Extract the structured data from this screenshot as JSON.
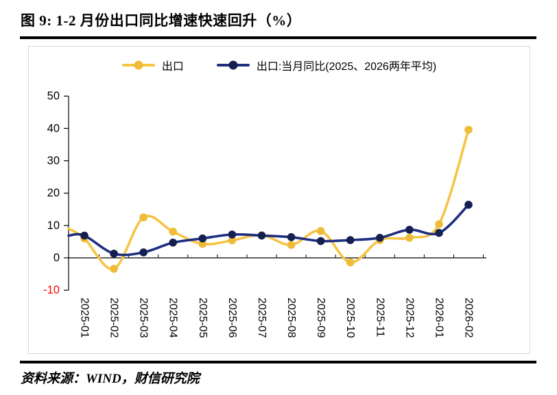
{
  "title": "图 9: 1-2 月份出口同比增速快速回升（%）",
  "source": "资料来源：WIND，财信研究院",
  "colors": {
    "text": "#000000",
    "rule": "#000000",
    "chart_border": "#D8D8D8",
    "axis": "#000000",
    "negative_tick_label": "#FF0000"
  },
  "chart_data": {
    "type": "line",
    "title": "1-2月份出口同比增速快速回升（%）",
    "categories": [
      "2025-01",
      "2025-02",
      "2025-03",
      "2025-04",
      "2025-05",
      "2025-06",
      "2025-07",
      "2025-08",
      "2025-09",
      "2025-10",
      "2025-11",
      "2025-12",
      "2026-01",
      "2026-02"
    ],
    "series": [
      {
        "name": "出口",
        "color": "#F5C444",
        "marker_color": "#EFBB38",
        "left_edge_entry": 9.0,
        "values": [
          6.0,
          -3.4,
          12.5,
          8.1,
          4.3,
          5.4,
          7.0,
          4.0,
          8.3,
          -1.4,
          5.5,
          6.2,
          10.4,
          39.6
        ]
      },
      {
        "name": "出口:当月同比(2025、2026两年平均)",
        "color": "#1D2E80",
        "marker_color": "#152051",
        "left_edge_entry": 6.9,
        "values": [
          6.9,
          1.3,
          1.7,
          4.7,
          6.0,
          7.2,
          6.9,
          6.4,
          5.2,
          5.5,
          6.2,
          8.7,
          7.7,
          16.4
        ]
      }
    ],
    "ylim": [
      -10,
      50
    ],
    "yticks": [
      50,
      40,
      30,
      20,
      10,
      0,
      -10
    ],
    "negative_tick_color": "#FF0000",
    "grid": "off",
    "smoothed": true,
    "legend_position": "top"
  }
}
